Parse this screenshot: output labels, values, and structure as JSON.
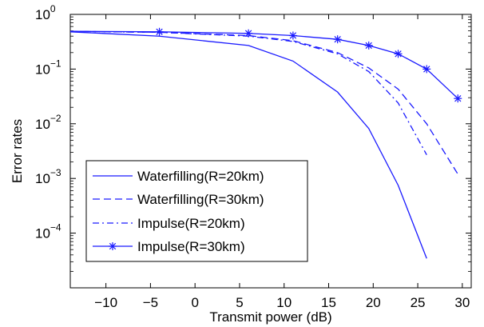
{
  "chart_data": {
    "type": "line",
    "xlabel": "Transmit power (dB)",
    "ylabel": "Error rates",
    "xlim": [
      -14,
      31
    ],
    "ylim_log10": [
      -5,
      0
    ],
    "yscale": "log",
    "grid": false,
    "legend_position": "lower-left",
    "x_ticks": [
      "−10",
      "−5",
      "0",
      "5",
      "10",
      "15",
      "20",
      "25",
      "30"
    ],
    "y_ticks": [
      {
        "base": "10",
        "exp": "0"
      },
      {
        "base": "10",
        "exp": "−1"
      },
      {
        "base": "10",
        "exp": "−2"
      },
      {
        "base": "10",
        "exp": "−3"
      },
      {
        "base": "10",
        "exp": "−4"
      }
    ],
    "series": [
      {
        "name": "Waterfilling(R=20km)",
        "style": "solid",
        "marker": "none",
        "x": [
          -14,
          -4,
          6,
          11,
          16,
          19.5,
          22.8,
          26
        ],
        "y": [
          0.48,
          0.4,
          0.27,
          0.14,
          0.038,
          0.0082,
          0.00075,
          3.45e-05
        ]
      },
      {
        "name": "Waterfilling(R=30km)",
        "style": "dashed",
        "marker": "none",
        "x": [
          -14,
          -4,
          6,
          11,
          16,
          19.5,
          22.8,
          26,
          29.5
        ],
        "y": [
          0.49,
          0.47,
          0.41,
          0.33,
          0.2,
          0.105,
          0.043,
          0.01,
          0.0012
        ]
      },
      {
        "name": "Impulse(R=20km)",
        "style": "dashdot",
        "marker": "none",
        "x": [
          -14,
          -4,
          6,
          11,
          16,
          19.5,
          22.8,
          26
        ],
        "y": [
          0.49,
          0.47,
          0.4,
          0.32,
          0.19,
          0.09,
          0.024,
          0.0027
        ]
      },
      {
        "name": "Impulse(R=30km)",
        "style": "solid",
        "marker": "star",
        "x": [
          -14,
          -4,
          6,
          11,
          16,
          19.5,
          22.8,
          26,
          29.5
        ],
        "y": [
          0.49,
          0.48,
          0.45,
          0.41,
          0.35,
          0.27,
          0.19,
          0.1,
          0.029
        ]
      }
    ],
    "colors": {
      "series": "#1a1aff",
      "axes": "#000000"
    }
  }
}
